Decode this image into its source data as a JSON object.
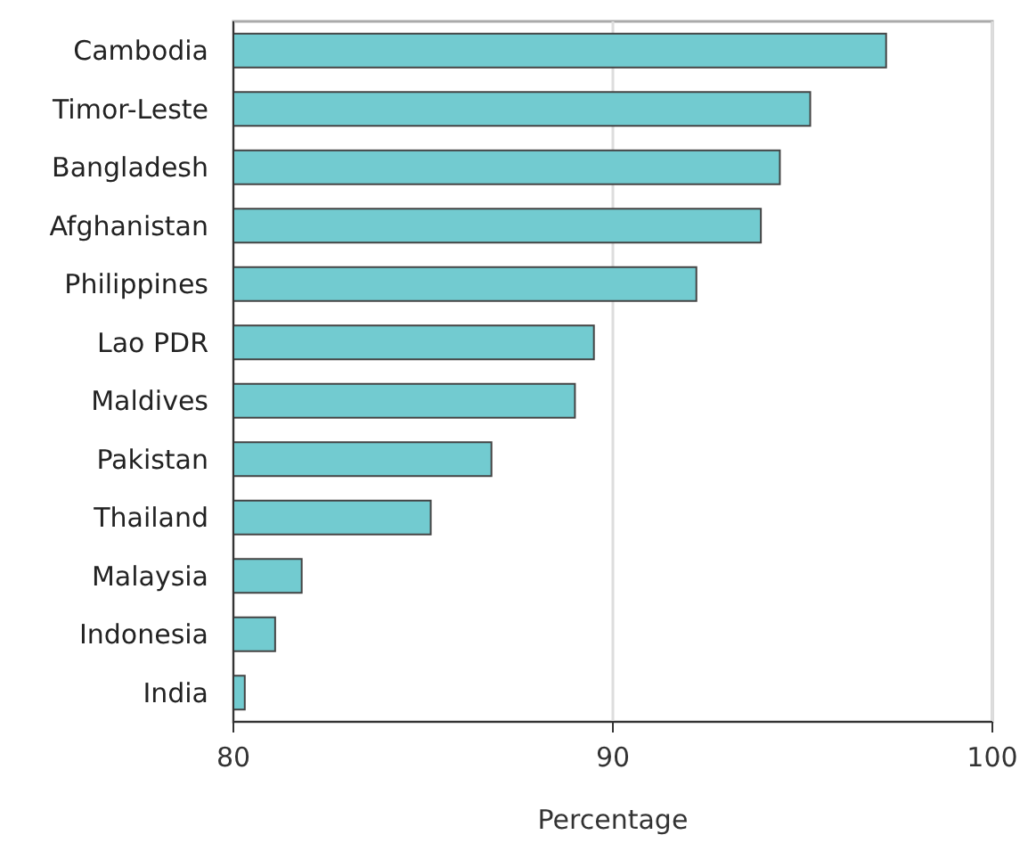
{
  "chart_data": {
    "type": "bar",
    "orientation": "horizontal",
    "xlabel": "Percentage",
    "categories": [
      "Cambodia",
      "Timor-Leste",
      "Bangladesh",
      "Afghanistan",
      "Philippines",
      "Lao PDR",
      "Maldives",
      "Pakistan",
      "Thailand",
      "Malaysia",
      "Indonesia",
      "India"
    ],
    "values": [
      97.2,
      95.2,
      94.4,
      93.9,
      92.2,
      89.5,
      89.0,
      86.8,
      85.2,
      81.8,
      81.1,
      80.3
    ],
    "color": "#72cbd0",
    "xlim": [
      80,
      100
    ],
    "xticks": [
      80,
      90,
      100
    ],
    "grid": "x"
  }
}
